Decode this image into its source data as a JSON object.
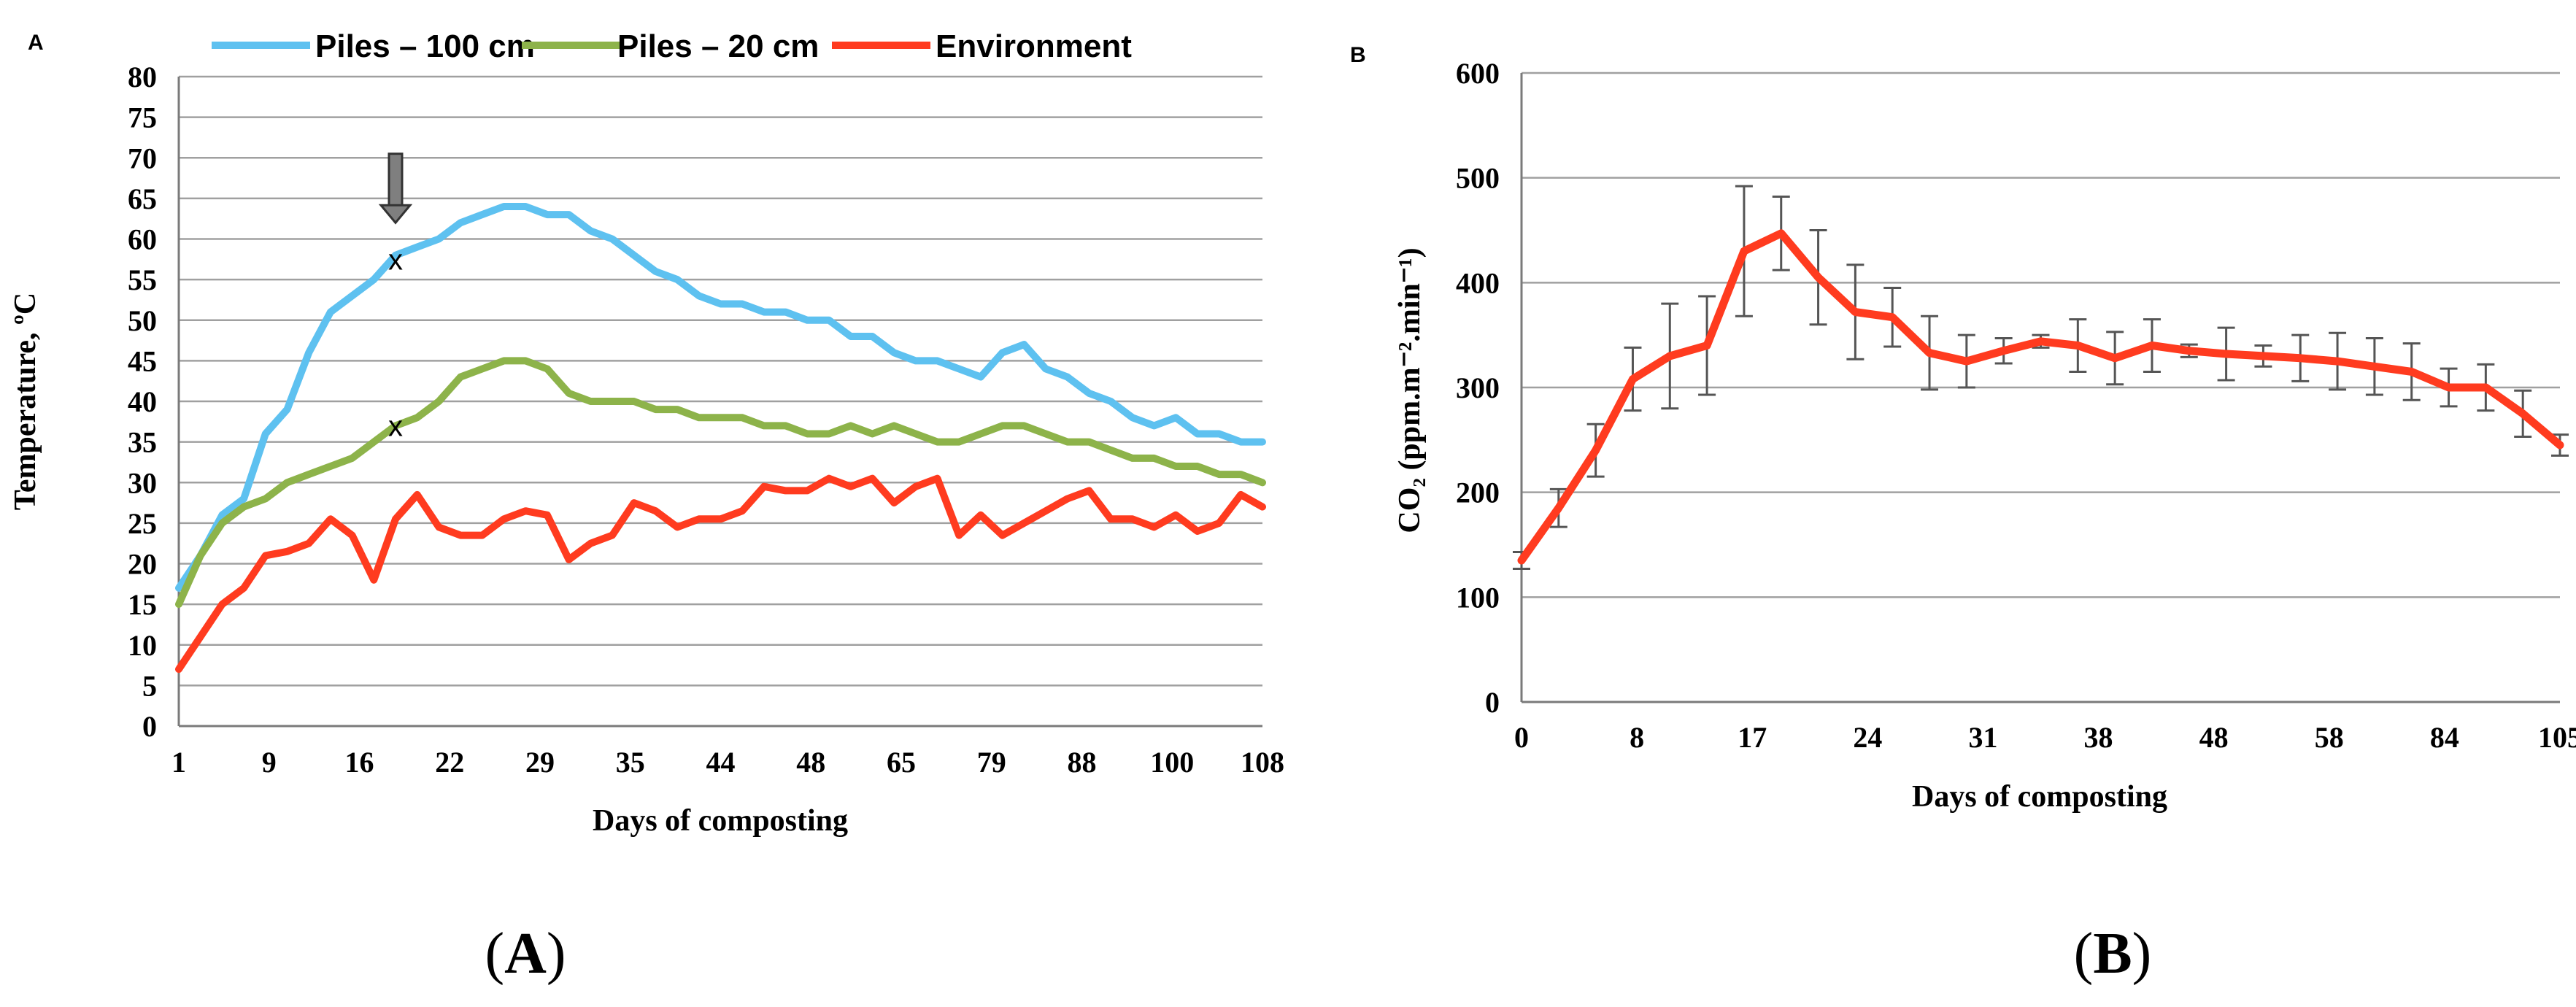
{
  "chart_data": [
    {
      "type": "line",
      "panel_letter": "A",
      "xlabel": "Days of composting",
      "ylabel": "Temperature, ºC",
      "x_tick_labels": [
        "1",
        "9",
        "16",
        "22",
        "29",
        "35",
        "44",
        "48",
        "65",
        "79",
        "88",
        "100",
        "108"
      ],
      "ylim": [
        0,
        80
      ],
      "y_ticks": [
        0,
        5,
        10,
        15,
        20,
        25,
        30,
        35,
        40,
        45,
        50,
        55,
        60,
        65,
        70,
        75,
        80
      ],
      "grid": true,
      "legend_position": "top",
      "colors": {
        "Piles – 100 cm": "#5ec1f0",
        "Piles – 20 cm": "#8db34a",
        "Environment": "#ff3b1f"
      },
      "series": [
        {
          "name": "Piles – 100 cm",
          "values": [
            17,
            21,
            26,
            28,
            36,
            39,
            46,
            51,
            53,
            55,
            58,
            59,
            60,
            62,
            63,
            64,
            64,
            63,
            63,
            61,
            60,
            58,
            56,
            55,
            53,
            52,
            52,
            51,
            51,
            50,
            50,
            48,
            48,
            46,
            45,
            45,
            44,
            43,
            46,
            47,
            44,
            43,
            41,
            40,
            38,
            37,
            38,
            36,
            36,
            35,
            35
          ]
        },
        {
          "name": "Piles – 20 cm",
          "values": [
            15,
            21,
            25,
            27,
            28,
            30,
            31,
            32,
            33,
            35,
            37,
            38,
            40,
            43,
            44,
            45,
            45,
            44,
            41,
            40,
            40,
            40,
            39,
            39,
            38,
            38,
            38,
            37,
            37,
            36,
            36,
            37,
            36,
            37,
            36,
            35,
            35,
            36,
            37,
            37,
            36,
            35,
            35,
            34,
            33,
            33,
            32,
            32,
            31,
            31,
            30
          ]
        },
        {
          "name": "Environment",
          "values": [
            7,
            11,
            15,
            17,
            21,
            21.5,
            22.5,
            25.5,
            23.5,
            18,
            25.5,
            28.5,
            24.5,
            23.5,
            23.5,
            25.5,
            26.5,
            26,
            20.5,
            22.5,
            23.5,
            27.5,
            26.5,
            24.5,
            25.5,
            25.5,
            26.5,
            29.5,
            29,
            29,
            30.5,
            29.5,
            30.5,
            27.5,
            29.5,
            30.5,
            23.5,
            26,
            23.5,
            25,
            26.5,
            28,
            29,
            25.5,
            25.5,
            24.5,
            26,
            24,
            25,
            28.5,
            27
          ]
        }
      ],
      "annotations": [
        {
          "label": "x",
          "x_index": 10,
          "y": 57.5,
          "series": "Piles – 100 cm"
        },
        {
          "label": "x",
          "x_index": 10,
          "y": 37,
          "series": "Piles – 20 cm"
        },
        {
          "label": "arrow",
          "x_index": 10,
          "y_from": 70.5,
          "y_to": 62
        }
      ]
    },
    {
      "type": "line",
      "panel_letter": "B",
      "xlabel": "Days of composting",
      "ylabel": "CO₂ (ppm.m⁻².min⁻¹)",
      "x_tick_labels": [
        "0",
        "8",
        "17",
        "24",
        "31",
        "38",
        "48",
        "58",
        "84",
        "105"
      ],
      "ylim": [
        0,
        600
      ],
      "y_ticks": [
        0,
        100,
        200,
        300,
        400,
        500,
        600
      ],
      "grid": true,
      "colors": {
        "line": "#ff3b1f",
        "error_bars": "#555555"
      },
      "series": [
        {
          "name": "",
          "values": [
            135,
            185,
            240,
            308,
            330,
            340,
            430,
            447,
            405,
            372,
            367,
            333,
            325,
            335,
            344,
            340,
            328,
            340,
            335,
            332,
            330,
            328,
            325,
            320,
            315,
            300,
            300,
            275,
            245
          ],
          "errors": [
            8,
            18,
            25,
            30,
            50,
            47,
            62,
            35,
            45,
            45,
            28,
            35,
            25,
            12,
            6,
            25,
            25,
            25,
            6,
            25,
            10,
            22,
            27,
            27,
            27,
            18,
            22,
            22,
            10
          ]
        }
      ]
    }
  ],
  "captions": {
    "left": "A",
    "right": "B"
  }
}
